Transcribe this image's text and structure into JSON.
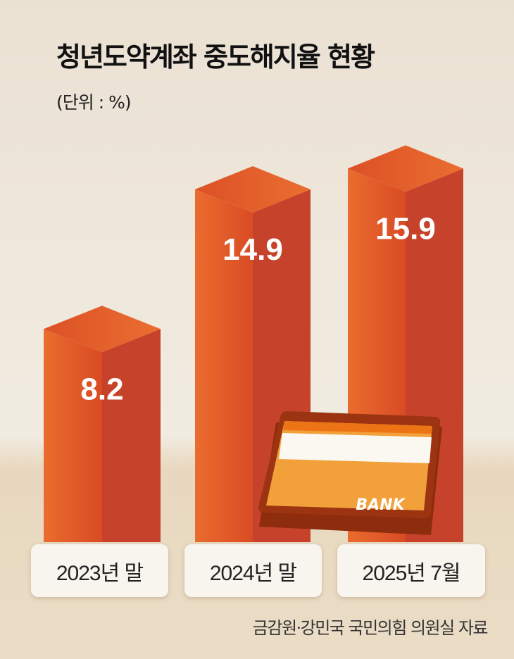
{
  "chart_data": {
    "type": "bar",
    "title": "청년도약계좌 중도해지율 현황",
    "subtitle": "(단위 : %)",
    "categories": [
      "2023년 말",
      "2024년 말",
      "2025년 7월"
    ],
    "values": [
      8.2,
      14.9,
      15.9
    ],
    "value_labels": [
      "8.2",
      "14.9",
      "15.9"
    ],
    "source": "금감원·강민국 국민의힘 의원실 자료",
    "grid": false,
    "style": "3d-bar",
    "colors": {
      "bar_light": "#e8682c",
      "bar_mid": "#dd5426",
      "bar_dark": "#c7422a",
      "card": "#f2a03a",
      "card_border": "#9c3412"
    },
    "decoration": {
      "icon": "bank-card-icon",
      "text": "BANK"
    }
  }
}
